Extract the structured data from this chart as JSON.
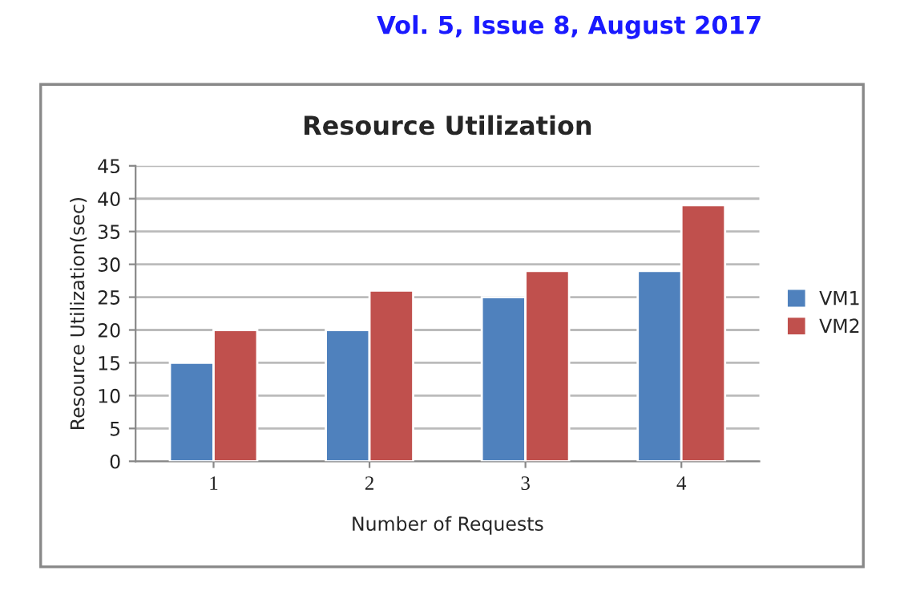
{
  "chart_data": {
    "type": "bar",
    "title": "Resource Utilization",
    "xlabel": "Number of Requests",
    "ylabel": "Resource Utilization(sec)",
    "annotations": [
      "Vol. 5, Issue 8, August 2017"
    ],
    "categories": [
      "1",
      "2",
      "3",
      "4"
    ],
    "series": [
      {
        "name": "VM1",
        "color": "#4f81bd",
        "values": [
          15,
          20,
          25,
          29
        ]
      },
      {
        "name": "VM2",
        "color": "#c0504d",
        "values": [
          20,
          26,
          29,
          39
        ]
      }
    ],
    "ylim": [
      0,
      45
    ],
    "yticks": [
      0,
      5,
      10,
      15,
      20,
      25,
      30,
      35,
      40,
      45
    ],
    "grid": "y",
    "legend": "right"
  }
}
